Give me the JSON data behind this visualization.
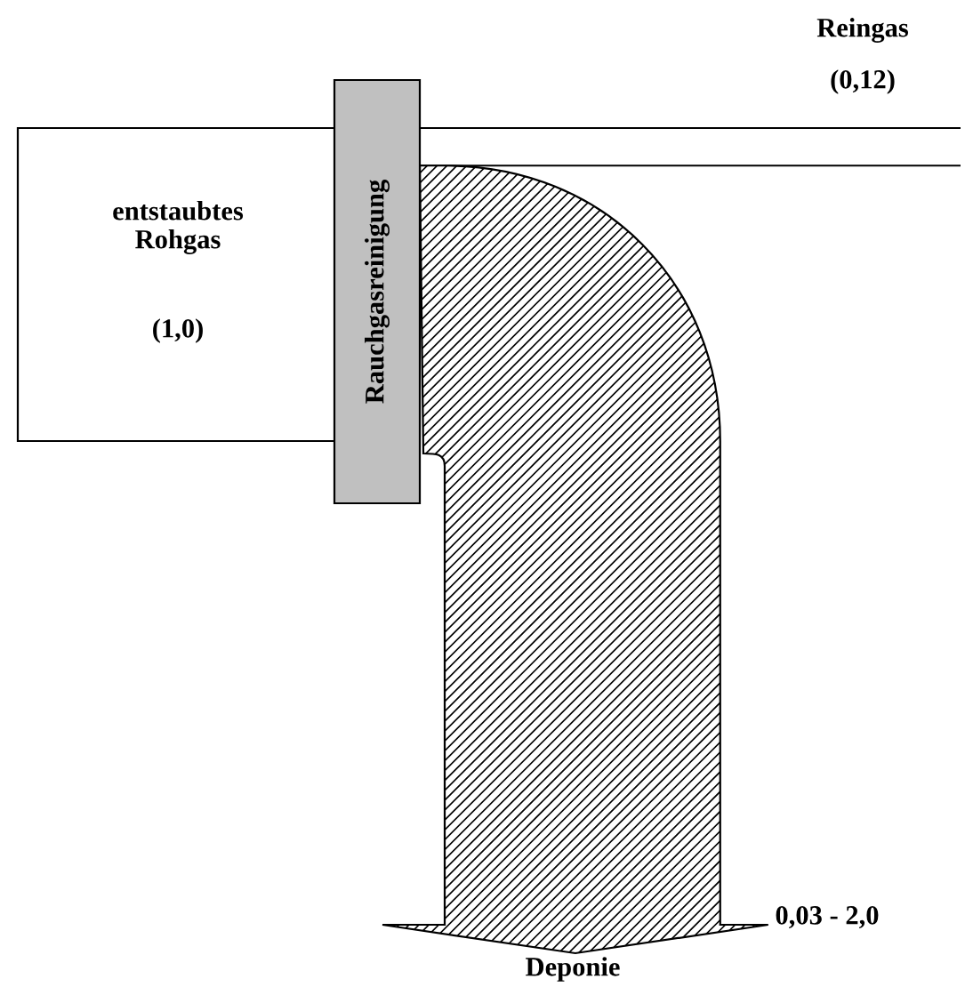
{
  "chart_data": {
    "type": "other",
    "categories": [
      "entstaubtes\nRohgas",
      "Reingas",
      "Deponie"
    ],
    "values": [
      1.0,
      0.12,
      null
    ],
    "value_labels": [
      "(1,0)",
      "(0,12)",
      "0,03 - 2,0"
    ],
    "annotations": [
      "Rauchgasreinigung"
    ],
    "colors": [
      "#ffffff",
      "#ffffff",
      "#ffffff"
    ]
  }
}
